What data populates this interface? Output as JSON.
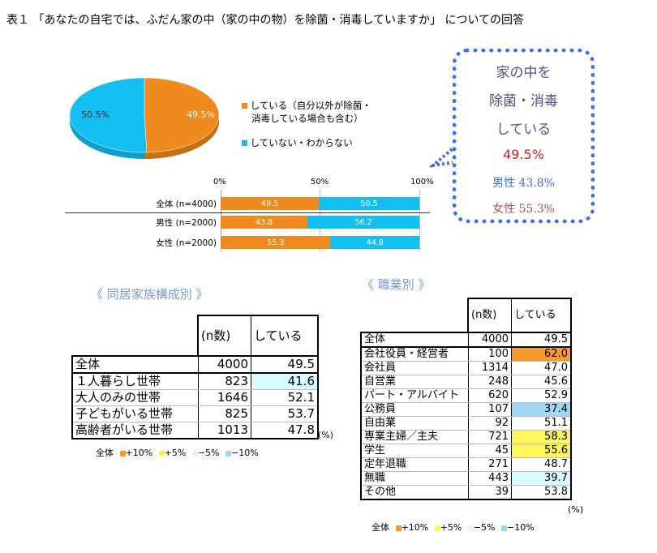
{
  "title": "表１ 「あなたの自宅では、ふだん家の中（家の中の物）を除菌・消毒していますか」 についての回答",
  "colors": {
    "orange": "#ee8a1e",
    "cyan": "#12bff0",
    "plus10": "#f79a2a",
    "plus5": "#fef65a",
    "minus5": "#d9fbff",
    "minus10": "#9fd7f5"
  },
  "pie": {
    "slices": [
      {
        "label": "している（自分以外が除菌・消毒している場合も含む）",
        "value": 49.5,
        "display": "49.5%",
        "color": "#ee8a1e"
      },
      {
        "label": "していない・わからない",
        "value": 50.5,
        "display": "50.5%",
        "color": "#12bff0"
      }
    ],
    "legend": {
      "doing_line1": "している（自分以外が除菌・",
      "doing_line2": "消毒している場合も含む）",
      "not_doing": "していない・わからない"
    }
  },
  "chart_data": {
    "type": "bar",
    "orientation": "horizontal-stacked-100",
    "x_ticks": [
      "0%",
      "50%",
      "100%"
    ],
    "categories": [
      "全体 (n=4000)",
      "男性 (n=2000)",
      "女性 (n=2000)"
    ],
    "series": [
      {
        "values": [
          49.5,
          43.8,
          55.3
        ],
        "color": "#ee8a1e"
      },
      {
        "values": [
          50.5,
          56.2,
          44.8
        ],
        "color": "#12bff0"
      }
    ],
    "xlim": [
      0,
      100
    ]
  },
  "callout": {
    "line1": "家の中を",
    "line2": "除菌・消毒",
    "line3": "している",
    "total": "49.5%",
    "male": "男性 43.8%",
    "female": "女性 55.3%"
  },
  "household": {
    "heading": "《 同居家族構成別 》",
    "col_n": "(n数)",
    "col_doing": "している",
    "unit": "(%)",
    "rows": [
      {
        "label": "全体",
        "n": "4000",
        "v": "49.5",
        "hl": ""
      },
      {
        "label": "１人暮らし世帯",
        "n": "823",
        "v": "41.6",
        "hl": "minus5"
      },
      {
        "label": "大人のみの世帯",
        "n": "1646",
        "v": "52.1",
        "hl": ""
      },
      {
        "label": "子どもがいる世帯",
        "n": "825",
        "v": "53.7",
        "hl": ""
      },
      {
        "label": "高齢者がいる世帯",
        "n": "1013",
        "v": "47.8",
        "hl": ""
      }
    ]
  },
  "occupation": {
    "heading": "《 職業別 》",
    "col_n": "(n数)",
    "col_doing": "している",
    "unit": "(%)",
    "rows": [
      {
        "label": "全体",
        "n": "4000",
        "v": "49.5",
        "hl": ""
      },
      {
        "label": "会社役員・経営者",
        "n": "100",
        "v": "62.0",
        "hl": "plus10"
      },
      {
        "label": "会社員",
        "n": "1314",
        "v": "47.0",
        "hl": ""
      },
      {
        "label": "自営業",
        "n": "248",
        "v": "45.6",
        "hl": ""
      },
      {
        "label": "パート・アルバイト",
        "n": "620",
        "v": "52.9",
        "hl": ""
      },
      {
        "label": "公務員",
        "n": "107",
        "v": "37.4",
        "hl": "minus10"
      },
      {
        "label": "自由業",
        "n": "92",
        "v": "51.1",
        "hl": ""
      },
      {
        "label": "専業主婦／主夫",
        "n": "721",
        "v": "58.3",
        "hl": "plus5"
      },
      {
        "label": "学生",
        "n": "45",
        "v": "55.6",
        "hl": "plus5"
      },
      {
        "label": "定年退職",
        "n": "271",
        "v": "48.7",
        "hl": ""
      },
      {
        "label": "無職",
        "n": "443",
        "v": "39.7",
        "hl": "minus5"
      },
      {
        "label": "その他",
        "n": "39",
        "v": "53.8",
        "hl": ""
      }
    ]
  },
  "key": {
    "base": "全体",
    "plus10": "+10%",
    "plus5": "+5%",
    "minus5": "−5%",
    "minus10": "−10%"
  }
}
